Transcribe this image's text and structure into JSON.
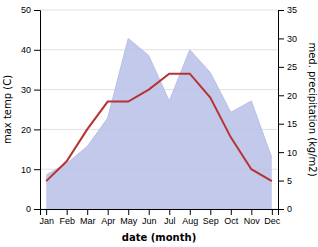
{
  "chart_data": {
    "type": "line",
    "x_label": "date (month)",
    "y_label": "max temp (C)",
    "y2_label": "med. precipitation (kg/m2)",
    "categories": [
      "Jan",
      "Feb",
      "Mar",
      "Apr",
      "May",
      "Jun",
      "Jul",
      "Aug",
      "Sep",
      "Oct",
      "Nov",
      "Dec"
    ],
    "series": [
      {
        "type": "area",
        "axis": "y2",
        "color": "#b8c0e8",
        "values": [
          6,
          8,
          11,
          16,
          30,
          27,
          19,
          28,
          24,
          17,
          19,
          9
        ]
      },
      {
        "type": "line",
        "color": "#b83232",
        "values": [
          7,
          12,
          20,
          27,
          27,
          30,
          34,
          34,
          28,
          18,
          10,
          7
        ]
      }
    ],
    "ylim": [
      0,
      50
    ],
    "yticks": [
      0,
      10,
      20,
      30,
      40,
      50
    ],
    "y2lim": [
      0,
      35
    ],
    "y2ticks": [
      0,
      5,
      10,
      15,
      20,
      25,
      30,
      35
    ],
    "grid": true
  }
}
